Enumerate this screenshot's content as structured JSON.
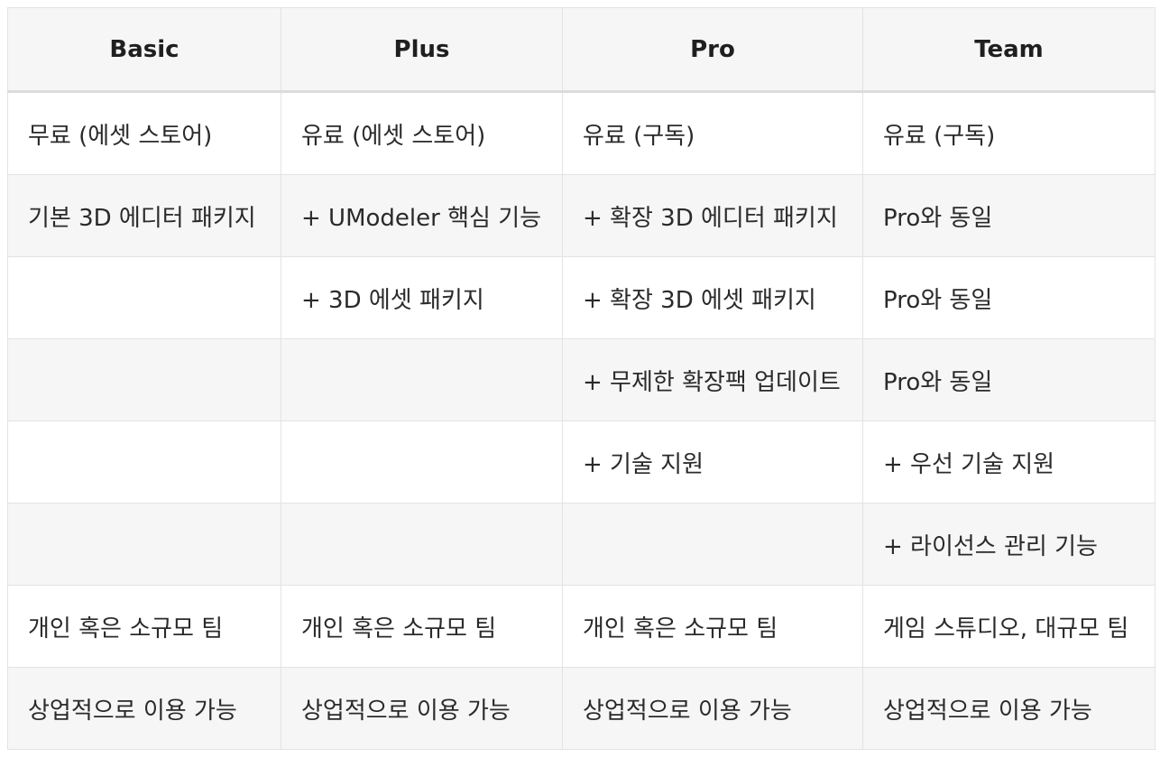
{
  "table": {
    "headers": [
      "Basic",
      "Plus",
      "Pro",
      "Team"
    ],
    "rows": [
      [
        "무료 (에셋 스토어)",
        "유료 (에셋 스토어)",
        "유료 (구독)",
        "유료 (구독)"
      ],
      [
        "기본 3D 에디터 패키지",
        "+ UModeler 핵심 기능",
        "+ 확장 3D 에디터 패키지",
        "Pro와 동일"
      ],
      [
        "",
        "+ 3D 에셋 패키지",
        "+ 확장 3D 에셋 패키지",
        "Pro와 동일"
      ],
      [
        "",
        "",
        "+ 무제한 확장팩 업데이트",
        "Pro와 동일"
      ],
      [
        "",
        "",
        "+ 기술 지원",
        "+ 우선 기술 지원"
      ],
      [
        "",
        "",
        "",
        "+ 라이선스 관리 기능"
      ],
      [
        "개인 혹은 소규모 팀",
        "개인 혹은 소규모 팀",
        "개인 혹은 소규모 팀",
        "게임 스튜디오, 대규모 팀"
      ],
      [
        "상업적으로 이용 가능",
        "상업적으로 이용 가능",
        "상업적으로 이용 가능",
        "상업적으로 이용 가능"
      ]
    ]
  }
}
